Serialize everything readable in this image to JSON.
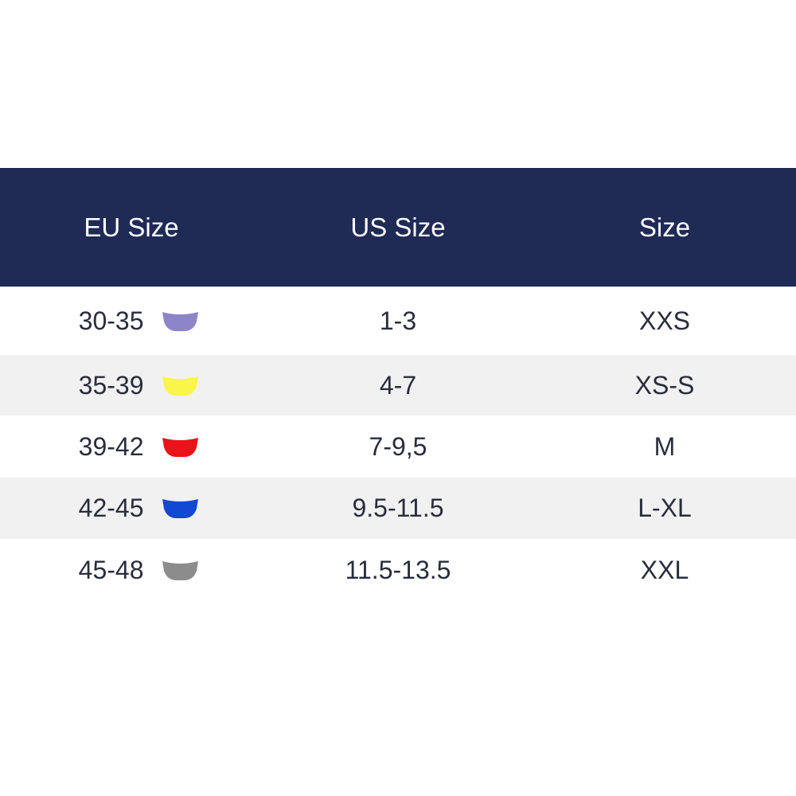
{
  "header": {
    "eu": "EU Size",
    "us": "US Size",
    "size": "Size"
  },
  "rows": [
    {
      "eu": "30-35",
      "us": "1-3",
      "size": "XXS",
      "color": "#8e84c8"
    },
    {
      "eu": "35-39",
      "us": "4-7",
      "size": "XS-S",
      "color": "#faf54a"
    },
    {
      "eu": "39-42",
      "us": "7-9,5",
      "size": "M",
      "color": "#e8141a"
    },
    {
      "eu": "42-45",
      "us": "9.5-11.5",
      "size": "L-XL",
      "color": "#1447d4"
    },
    {
      "eu": "45-48",
      "us": "11.5-13.5",
      "size": "XXL",
      "color": "#8c8c8c"
    }
  ]
}
